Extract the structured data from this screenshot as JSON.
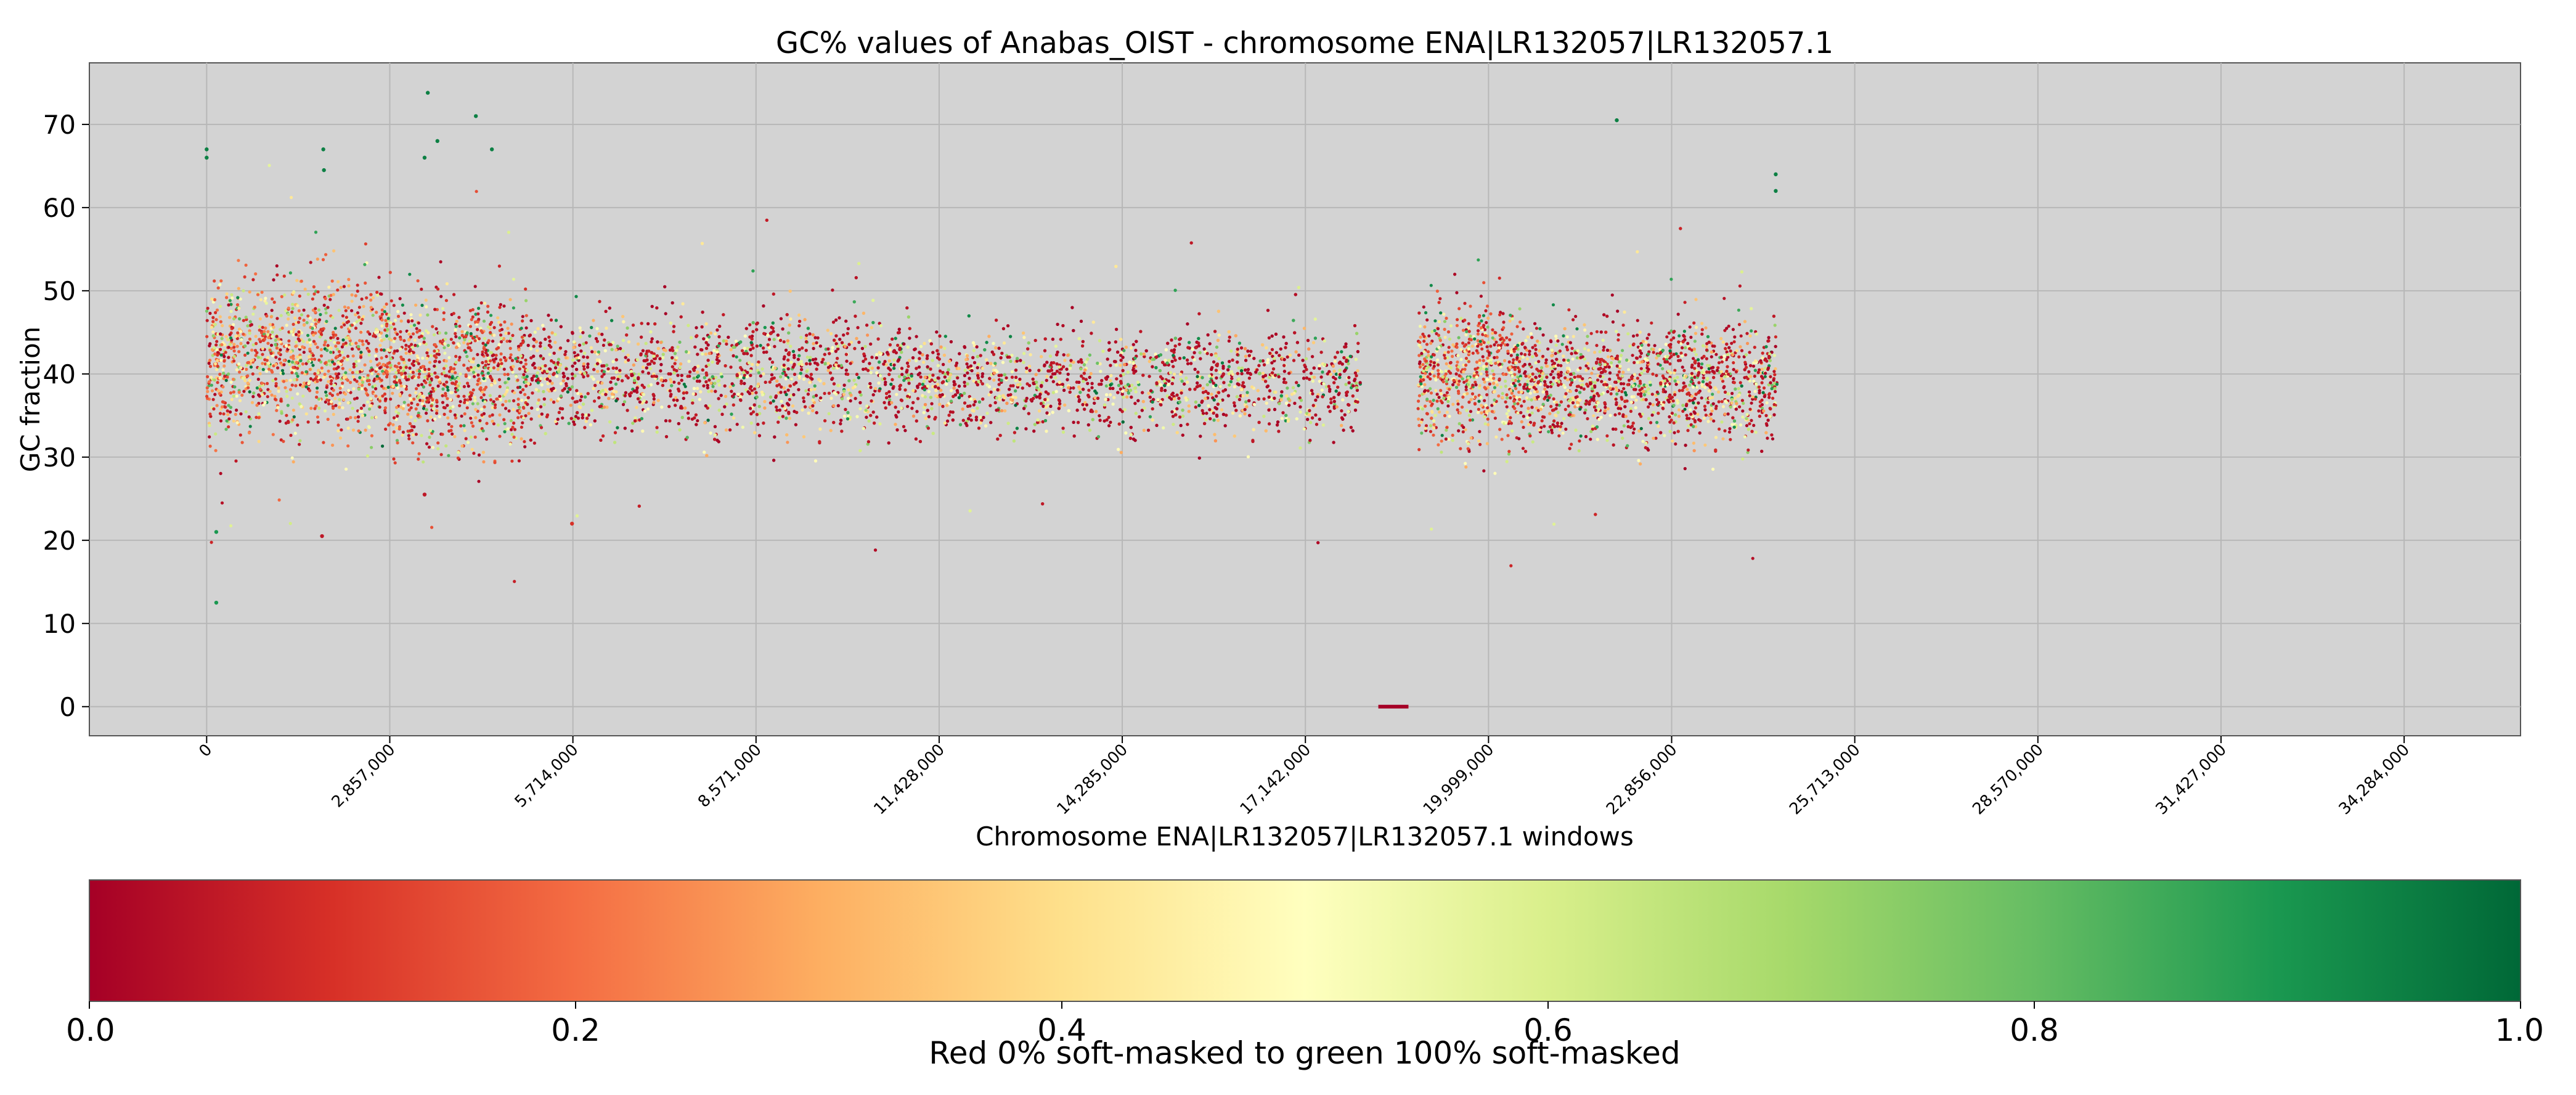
{
  "chart_data": [
    {
      "type": "scatter",
      "title": "GC% values of Anabas_OIST - chromosome ENA|LR132057|LR132057.1",
      "xlabel": "Chromosome ENA|LR132057|LR132057.1 windows",
      "ylabel": "GC fraction",
      "xlim": [
        -1830000,
        36100000
      ],
      "ylim": [
        -3.5,
        77.4
      ],
      "grid": true,
      "background": "#d3d3d3",
      "x_ticks": [
        0,
        2857000,
        5714000,
        8571000,
        11428000,
        14285000,
        17142000,
        19999000,
        22856000,
        25713000,
        28570000,
        31427000,
        34284000
      ],
      "x_tick_labels": [
        "0",
        "2,857,000",
        "5,714,000",
        "8,571,000",
        "11,428,000",
        "14,285,000",
        "17,142,000",
        "19,999,000",
        "22,856,000",
        "25,713,000",
        "28,570,000",
        "31,427,000",
        "34,284,000"
      ],
      "y_ticks": [
        0,
        10,
        20,
        30,
        40,
        50,
        60,
        70
      ],
      "y_tick_labels": [
        "0",
        "10",
        "20",
        "30",
        "40",
        "50",
        "60",
        "70"
      ],
      "color_by": "soft-masked fraction (0 = red, 1 = green)",
      "data_extent_x": [
        0,
        24500000
      ],
      "typical_gc_range": [
        30,
        50
      ],
      "gap_windows": {
        "x_start": 18280000,
        "x_end": 18750000,
        "gc": 0,
        "color": "#a50026"
      },
      "segments": [
        {
          "x_start": 0,
          "x_end": 2900000,
          "gc_center": 42,
          "gc_spread": 4.5,
          "mask_mean": 0.4
        },
        {
          "x_start": 2900000,
          "x_end": 5000000,
          "gc_center": 40,
          "gc_spread": 4.5,
          "mask_mean": 0.3
        },
        {
          "x_start": 5000000,
          "x_end": 11000000,
          "gc_center": 40,
          "gc_spread": 3.5,
          "mask_mean": 0.12
        },
        {
          "x_start": 11000000,
          "x_end": 18000000,
          "gc_center": 39,
          "gc_spread": 3.0,
          "mask_mean": 0.1
        },
        {
          "x_start": 18900000,
          "x_end": 20500000,
          "gc_center": 40,
          "gc_spread": 4.0,
          "mask_mean": 0.35
        },
        {
          "x_start": 20500000,
          "x_end": 24500000,
          "gc_center": 39,
          "gc_spread": 3.5,
          "mask_mean": 0.15
        }
      ],
      "outliers": [
        {
          "x": 0,
          "y": 67,
          "mask": 0.95
        },
        {
          "x": 0,
          "y": 66,
          "mask": 0.95
        },
        {
          "x": 150000,
          "y": 21,
          "mask": 0.9
        },
        {
          "x": 150000,
          "y": 12.5,
          "mask": 0.9
        },
        {
          "x": 1800000,
          "y": 20.5,
          "mask": 0.05
        },
        {
          "x": 1820000,
          "y": 67,
          "mask": 0.95
        },
        {
          "x": 1830000,
          "y": 64.5,
          "mask": 0.95
        },
        {
          "x": 3450000,
          "y": 73.8,
          "mask": 0.95
        },
        {
          "x": 3400000,
          "y": 66,
          "mask": 0.95
        },
        {
          "x": 3600000,
          "y": 68,
          "mask": 0.95
        },
        {
          "x": 4200000,
          "y": 71,
          "mask": 0.95
        },
        {
          "x": 4450000,
          "y": 67,
          "mask": 0.95
        },
        {
          "x": 3400000,
          "y": 25.5,
          "mask": 0.05
        },
        {
          "x": 5700000,
          "y": 22,
          "mask": 0.1
        },
        {
          "x": 22000000,
          "y": 70.5,
          "mask": 0.95
        },
        {
          "x": 24480000,
          "y": 64,
          "mask": 0.95
        },
        {
          "x": 24480000,
          "y": 62,
          "mask": 0.95
        }
      ]
    },
    {
      "type": "colorbar",
      "range": [
        0.0,
        1.0
      ],
      "colormap": "RdYlGn",
      "stops": [
        "#a50026",
        "#d73027",
        "#f46d43",
        "#fdae61",
        "#fee08b",
        "#ffffbf",
        "#d9ef8b",
        "#a6d96a",
        "#66bd63",
        "#1a9850",
        "#006837"
      ],
      "ticks": [
        0.0,
        0.2,
        0.4,
        0.6,
        0.8,
        1.0
      ],
      "tick_labels": [
        "0.0",
        "0.2",
        "0.4",
        "0.6",
        "0.8",
        "1.0"
      ],
      "label": "Red 0% soft-masked to green 100% soft-masked"
    }
  ]
}
